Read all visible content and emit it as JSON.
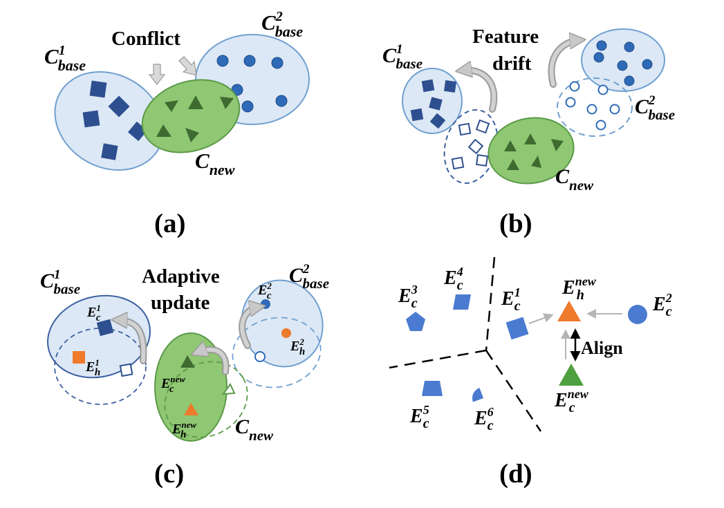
{
  "colors": {
    "base_fill": "#dce8f5",
    "base_stroke": "#6f9fd0",
    "new_fill": "#8fc773",
    "new_stroke": "#5a9a48",
    "dark_blue": "#2e4f8f",
    "mid_blue": "#3f76c8",
    "green_dark": "#3f6b30",
    "green": "#4fa040",
    "orange": "#ee7a2c",
    "arrow_gray": "#b4b4b4"
  },
  "panels": {
    "a": {
      "caption": "(a)",
      "title": "Conflict",
      "base1": {
        "main": "C",
        "sup": "1",
        "sub": "base"
      },
      "base2": {
        "main": "C",
        "sup": "2",
        "sub": "base"
      },
      "new": {
        "main": "C",
        "sub": "new"
      }
    },
    "b": {
      "caption": "(b)",
      "title_line1": "Feature",
      "title_line2": "drift",
      "base1": {
        "main": "C",
        "sup": "1",
        "sub": "base"
      },
      "base2": {
        "main": "C",
        "sup": "2",
        "sub": "base"
      },
      "new": {
        "main": "C",
        "sub": "new"
      }
    },
    "c": {
      "caption": "(c)",
      "title_line1": "Adaptive",
      "title_line2": "update",
      "base1": {
        "main": "C",
        "sup": "1",
        "sub": "base"
      },
      "base2": {
        "main": "C",
        "sup": "2",
        "sub": "base"
      },
      "new": {
        "main": "C",
        "sub": "new"
      },
      "e_c1": {
        "main": "E",
        "sup": "1",
        "sub": "c"
      },
      "e_h1": {
        "main": "E",
        "sup": "1",
        "sub": "h"
      },
      "e_c2": {
        "main": "E",
        "sup": "2",
        "sub": "c"
      },
      "e_h2": {
        "main": "E",
        "sup": "2",
        "sub": "h"
      },
      "e_cnew": {
        "main": "E",
        "sup": "new",
        "sub": "c"
      },
      "e_hnew": {
        "main": "E",
        "sup": "new",
        "sub": "h"
      }
    },
    "d": {
      "caption": "(d)",
      "align": "Align",
      "e_c3": {
        "main": "E",
        "sup": "3",
        "sub": "c"
      },
      "e_c4": {
        "main": "E",
        "sup": "4",
        "sub": "c"
      },
      "e_c1": {
        "main": "E",
        "sup": "1",
        "sub": "c"
      },
      "e_hnew": {
        "main": "E",
        "sup": "new",
        "sub": "h"
      },
      "e_c2": {
        "main": "E",
        "sup": "2",
        "sub": "c"
      },
      "e_cnew": {
        "main": "E",
        "sup": "new",
        "sub": "c"
      },
      "e_c5": {
        "main": "E",
        "sup": "5",
        "sub": "c"
      },
      "e_c6": {
        "main": "E",
        "sup": "6",
        "sub": "c"
      }
    }
  }
}
